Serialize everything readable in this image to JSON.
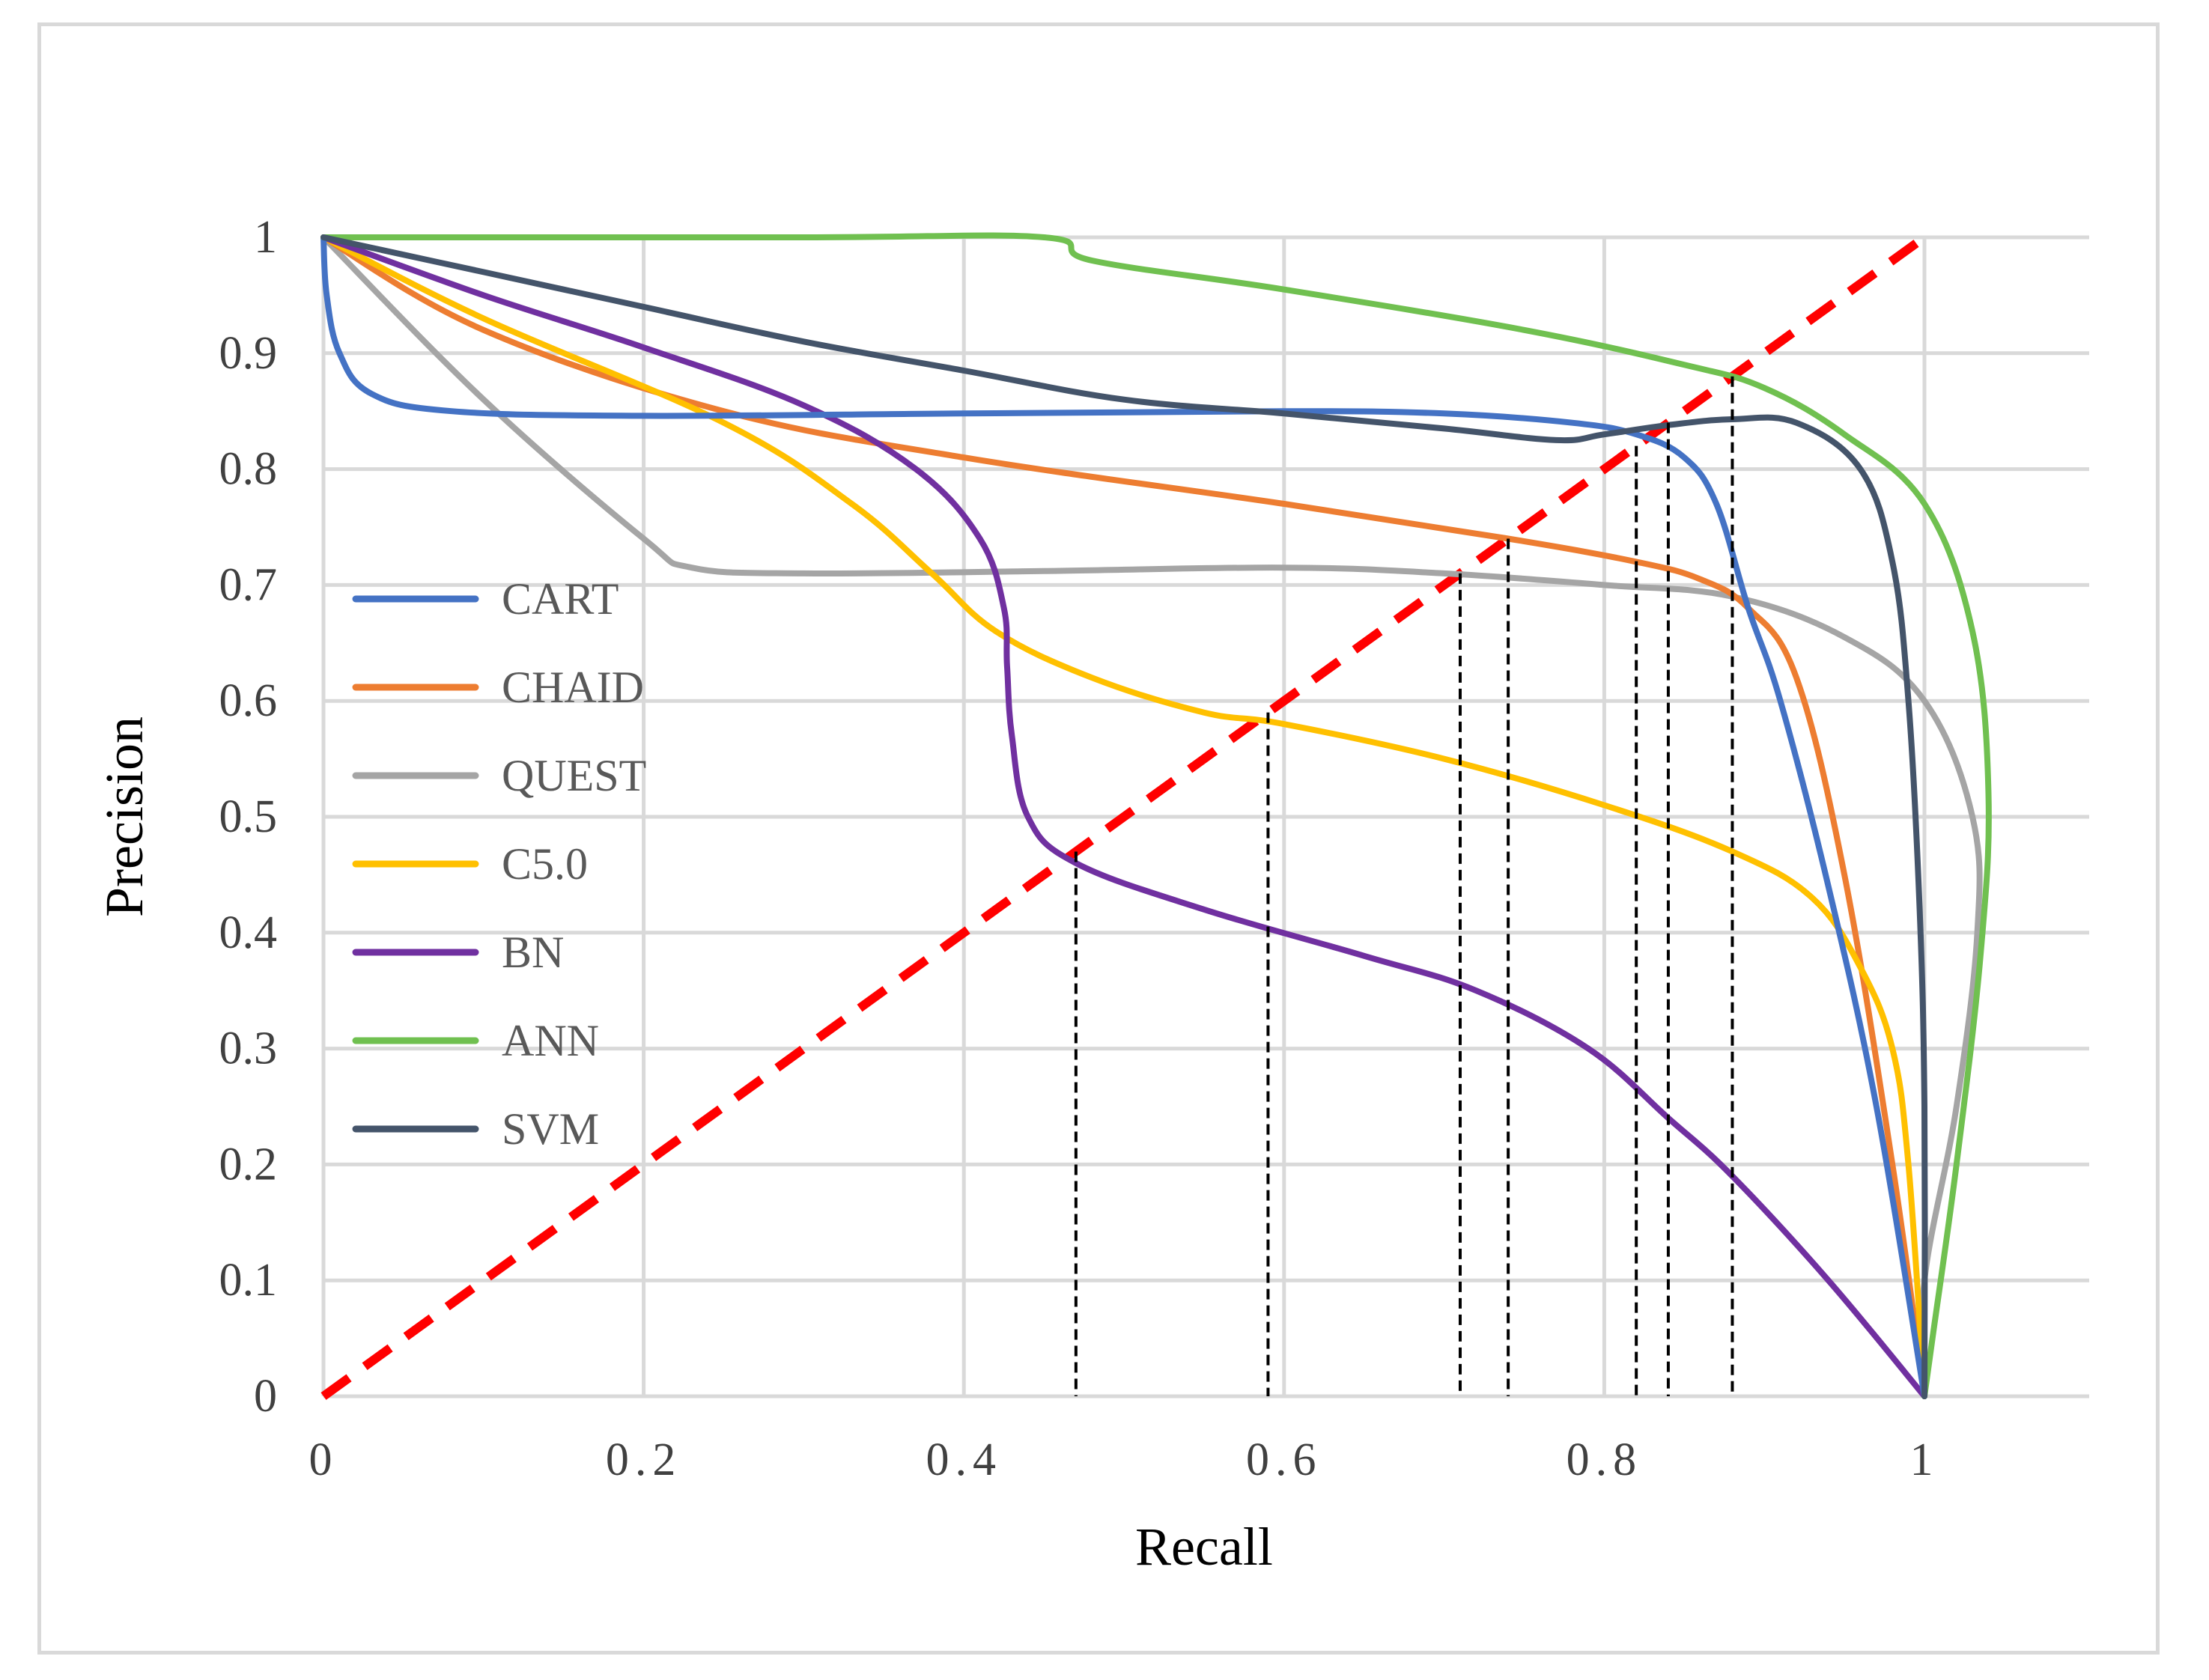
{
  "chart_data": {
    "type": "line",
    "title": "",
    "xlabel": "Recall",
    "ylabel": "Precision",
    "xlim": [
      0,
      1.1
    ],
    "ylim": [
      0,
      1
    ],
    "x_ticks": [
      {
        "value": 0,
        "label": "0"
      },
      {
        "value": 0.2,
        "label": "0.2"
      },
      {
        "value": 0.4,
        "label": "0.4"
      },
      {
        "value": 0.6,
        "label": "0.6"
      },
      {
        "value": 0.8,
        "label": "0.8"
      },
      {
        "value": 1.0,
        "label": "1"
      }
    ],
    "x_grid": [
      0,
      0.2,
      0.4,
      0.6,
      0.8,
      1.0
    ],
    "y_ticks": [
      {
        "value": 0,
        "label": "0"
      },
      {
        "value": 0.1,
        "label": "0.1"
      },
      {
        "value": 0.2,
        "label": "0.2"
      },
      {
        "value": 0.3,
        "label": "0.3"
      },
      {
        "value": 0.4,
        "label": "0.4"
      },
      {
        "value": 0.5,
        "label": "0.5"
      },
      {
        "value": 0.6,
        "label": "0.6"
      },
      {
        "value": 0.7,
        "label": "0.7"
      },
      {
        "value": 0.8,
        "label": "0.8"
      },
      {
        "value": 0.9,
        "label": "0.9"
      },
      {
        "value": 1,
        "label": "1"
      }
    ],
    "grid": true,
    "legend_position": "left",
    "series": [
      {
        "name": "CART",
        "color": "#4472c4",
        "points": [
          [
            0,
            1
          ],
          [
            0.002,
            0.95
          ],
          [
            0.01,
            0.9
          ],
          [
            0.03,
            0.865
          ],
          [
            0.08,
            0.85
          ],
          [
            0.2,
            0.846
          ],
          [
            0.4,
            0.848
          ],
          [
            0.6,
            0.85
          ],
          [
            0.7,
            0.848
          ],
          [
            0.78,
            0.84
          ],
          [
            0.82,
            0.83
          ],
          [
            0.85,
            0.81
          ],
          [
            0.87,
            0.77
          ],
          [
            0.89,
            0.68
          ],
          [
            0.91,
            0.6
          ],
          [
            0.94,
            0.44
          ],
          [
            0.97,
            0.25
          ],
          [
            1.0,
            0
          ]
        ]
      },
      {
        "name": "CHAID",
        "color": "#ed7d31",
        "points": [
          [
            0,
            1
          ],
          [
            0.1,
            0.92
          ],
          [
            0.25,
            0.85
          ],
          [
            0.4,
            0.81
          ],
          [
            0.6,
            0.77
          ],
          [
            0.74,
            0.74
          ],
          [
            0.82,
            0.72
          ],
          [
            0.86,
            0.705
          ],
          [
            0.89,
            0.68
          ],
          [
            0.92,
            0.62
          ],
          [
            0.95,
            0.45
          ],
          [
            0.98,
            0.2
          ],
          [
            1.0,
            0
          ]
        ]
      },
      {
        "name": "QUEST",
        "color": "#a5a5a5",
        "points": [
          [
            0,
            1
          ],
          [
            0.1,
            0.86
          ],
          [
            0.2,
            0.74
          ],
          [
            0.23,
            0.715
          ],
          [
            0.3,
            0.71
          ],
          [
            0.45,
            0.712
          ],
          [
            0.6,
            0.715
          ],
          [
            0.7,
            0.71
          ],
          [
            0.8,
            0.7
          ],
          [
            0.88,
            0.69
          ],
          [
            0.95,
            0.655
          ],
          [
            1.0,
            0.6
          ],
          [
            1.03,
            0.5
          ],
          [
            1.033,
            0.4
          ],
          [
            1.02,
            0.25
          ],
          [
            1.0,
            0.1
          ],
          [
            1.0,
            0
          ]
        ]
      },
      {
        "name": "C5.0",
        "color": "#ffc000",
        "points": [
          [
            0,
            1
          ],
          [
            0.1,
            0.93
          ],
          [
            0.25,
            0.84
          ],
          [
            0.33,
            0.77
          ],
          [
            0.38,
            0.71
          ],
          [
            0.42,
            0.66
          ],
          [
            0.48,
            0.62
          ],
          [
            0.55,
            0.59
          ],
          [
            0.6,
            0.58
          ],
          [
            0.7,
            0.55
          ],
          [
            0.8,
            0.51
          ],
          [
            0.88,
            0.47
          ],
          [
            0.93,
            0.43
          ],
          [
            0.96,
            0.37
          ],
          [
            0.98,
            0.3
          ],
          [
            0.99,
            0.2
          ],
          [
            1.0,
            0
          ]
        ]
      },
      {
        "name": "BN",
        "color": "#7030a0",
        "points": [
          [
            0,
            1
          ],
          [
            0.1,
            0.95
          ],
          [
            0.2,
            0.905
          ],
          [
            0.3,
            0.855
          ],
          [
            0.37,
            0.8
          ],
          [
            0.41,
            0.74
          ],
          [
            0.425,
            0.68
          ],
          [
            0.427,
            0.63
          ],
          [
            0.43,
            0.57
          ],
          [
            0.44,
            0.5
          ],
          [
            0.47,
            0.46
          ],
          [
            0.55,
            0.42
          ],
          [
            0.65,
            0.38
          ],
          [
            0.72,
            0.35
          ],
          [
            0.79,
            0.3
          ],
          [
            0.84,
            0.24
          ],
          [
            0.88,
            0.19
          ],
          [
            0.94,
            0.1
          ],
          [
            1.0,
            0
          ]
        ]
      },
      {
        "name": "ANN",
        "color": "#70c050",
        "points": [
          [
            0,
            1
          ],
          [
            0.3,
            1
          ],
          [
            0.45,
            1
          ],
          [
            0.48,
            0.98
          ],
          [
            0.6,
            0.955
          ],
          [
            0.75,
            0.92
          ],
          [
            0.85,
            0.89
          ],
          [
            0.9,
            0.87
          ],
          [
            0.95,
            0.83
          ],
          [
            1.0,
            0.77
          ],
          [
            1.03,
            0.66
          ],
          [
            1.04,
            0.52
          ],
          [
            1.035,
            0.38
          ],
          [
            1.02,
            0.2
          ],
          [
            1.005,
            0.05
          ],
          [
            1.0,
            0
          ]
        ]
      },
      {
        "name": "SVM",
        "color": "#44546a",
        "points": [
          [
            0,
            1
          ],
          [
            0.1,
            0.97
          ],
          [
            0.2,
            0.94
          ],
          [
            0.3,
            0.91
          ],
          [
            0.4,
            0.885
          ],
          [
            0.5,
            0.86
          ],
          [
            0.6,
            0.848
          ],
          [
            0.7,
            0.835
          ],
          [
            0.77,
            0.825
          ],
          [
            0.8,
            0.83
          ],
          [
            0.84,
            0.838
          ],
          [
            0.88,
            0.843
          ],
          [
            0.92,
            0.84
          ],
          [
            0.96,
            0.8
          ],
          [
            0.98,
            0.72
          ],
          [
            0.99,
            0.6
          ],
          [
            0.997,
            0.42
          ],
          [
            1.0,
            0.25
          ],
          [
            1.0,
            0
          ]
        ]
      }
    ],
    "reference_line": {
      "name": "Precision = Recall",
      "color": "#ff0000",
      "points": [
        [
          0,
          0
        ],
        [
          1,
          1
        ]
      ]
    },
    "breakeven_markers": [
      {
        "recall": 0.47,
        "precision": 0.47
      },
      {
        "recall": 0.59,
        "precision": 0.59
      },
      {
        "recall": 0.71,
        "precision": 0.71
      },
      {
        "recall": 0.74,
        "precision": 0.74
      },
      {
        "recall": 0.82,
        "precision": 0.82
      },
      {
        "recall": 0.84,
        "precision": 0.84
      },
      {
        "recall": 0.88,
        "precision": 0.88
      }
    ]
  }
}
